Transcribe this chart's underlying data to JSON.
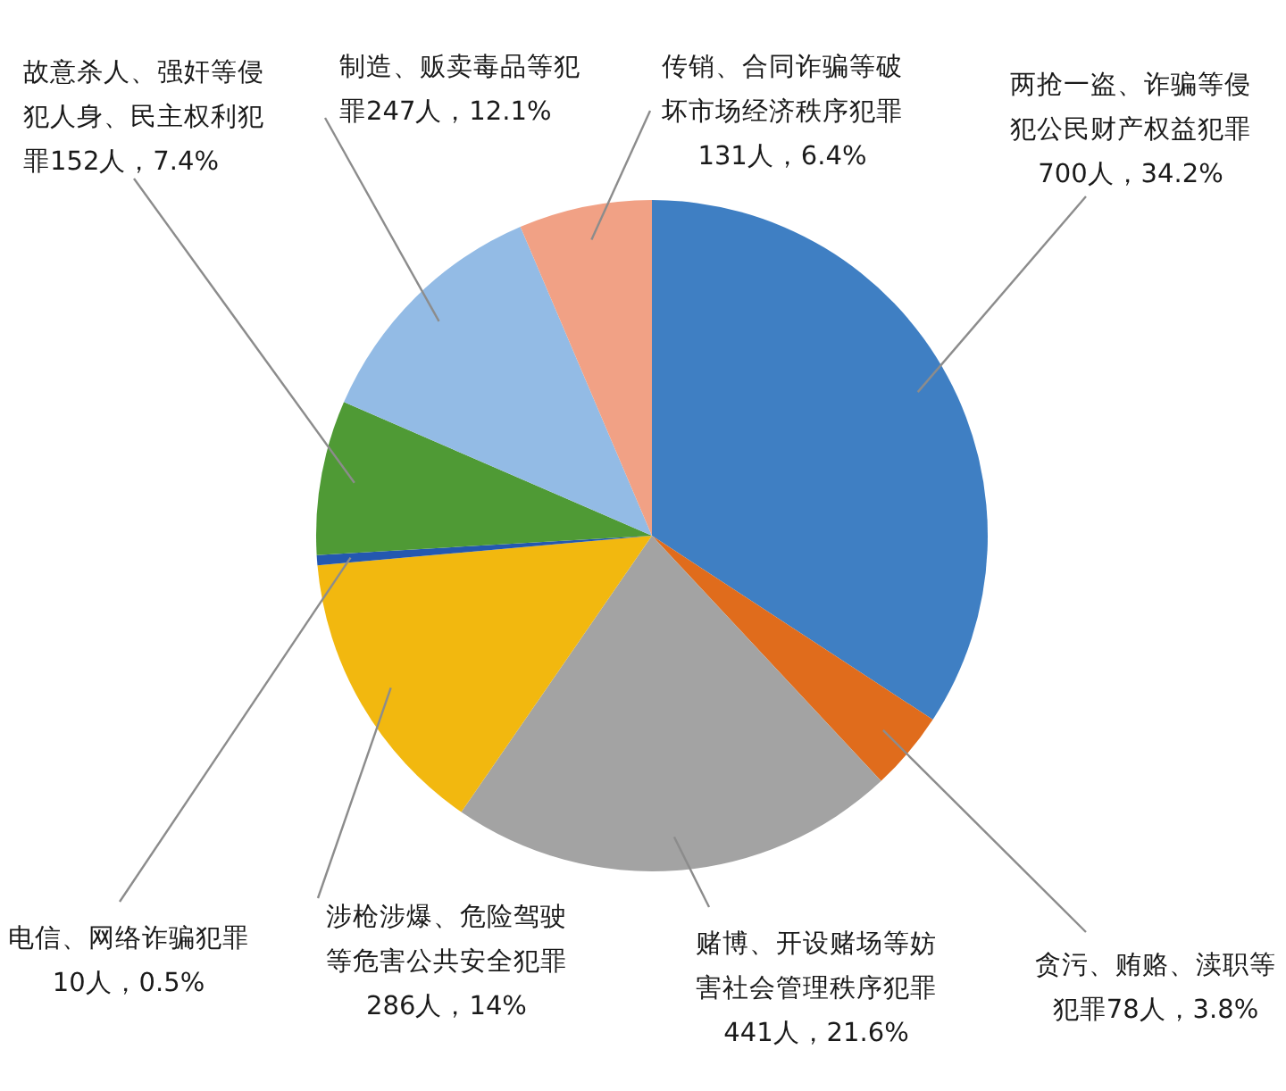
{
  "chart_data": {
    "type": "pie",
    "categories": [
      "两抢一盗、诈骗等侵犯公民财产权益犯罪",
      "贪污、贿赂、渎职等犯罪",
      "赌博、开设赌场等妨害社会管理秩序犯罪",
      "涉枪涉爆、危险驾驶等危害公共安全犯罪",
      "电信、网络诈骗犯罪",
      "故意杀人、强奸等侵犯人身、民主权利犯罪",
      "制造、贩卖毒品等犯罪",
      "传销、合同诈骗等破坏市场经济秩序犯罪"
    ],
    "values": [
      700,
      78,
      441,
      286,
      10,
      152,
      247,
      131
    ],
    "value_labels": [
      "700人，34.2%",
      "78人，3.8%",
      "441人，21.6%",
      "286人，14%",
      "10人，0.5%",
      "152人，7.4%",
      "247人，12.1%",
      "131人，6.4%"
    ],
    "colors": [
      "#3f7fc3",
      "#e06c1c",
      "#a3a3a3",
      "#f2b80f",
      "#2458b0",
      "#4f9a35",
      "#93bbe5",
      "#f1a185"
    ]
  }
}
